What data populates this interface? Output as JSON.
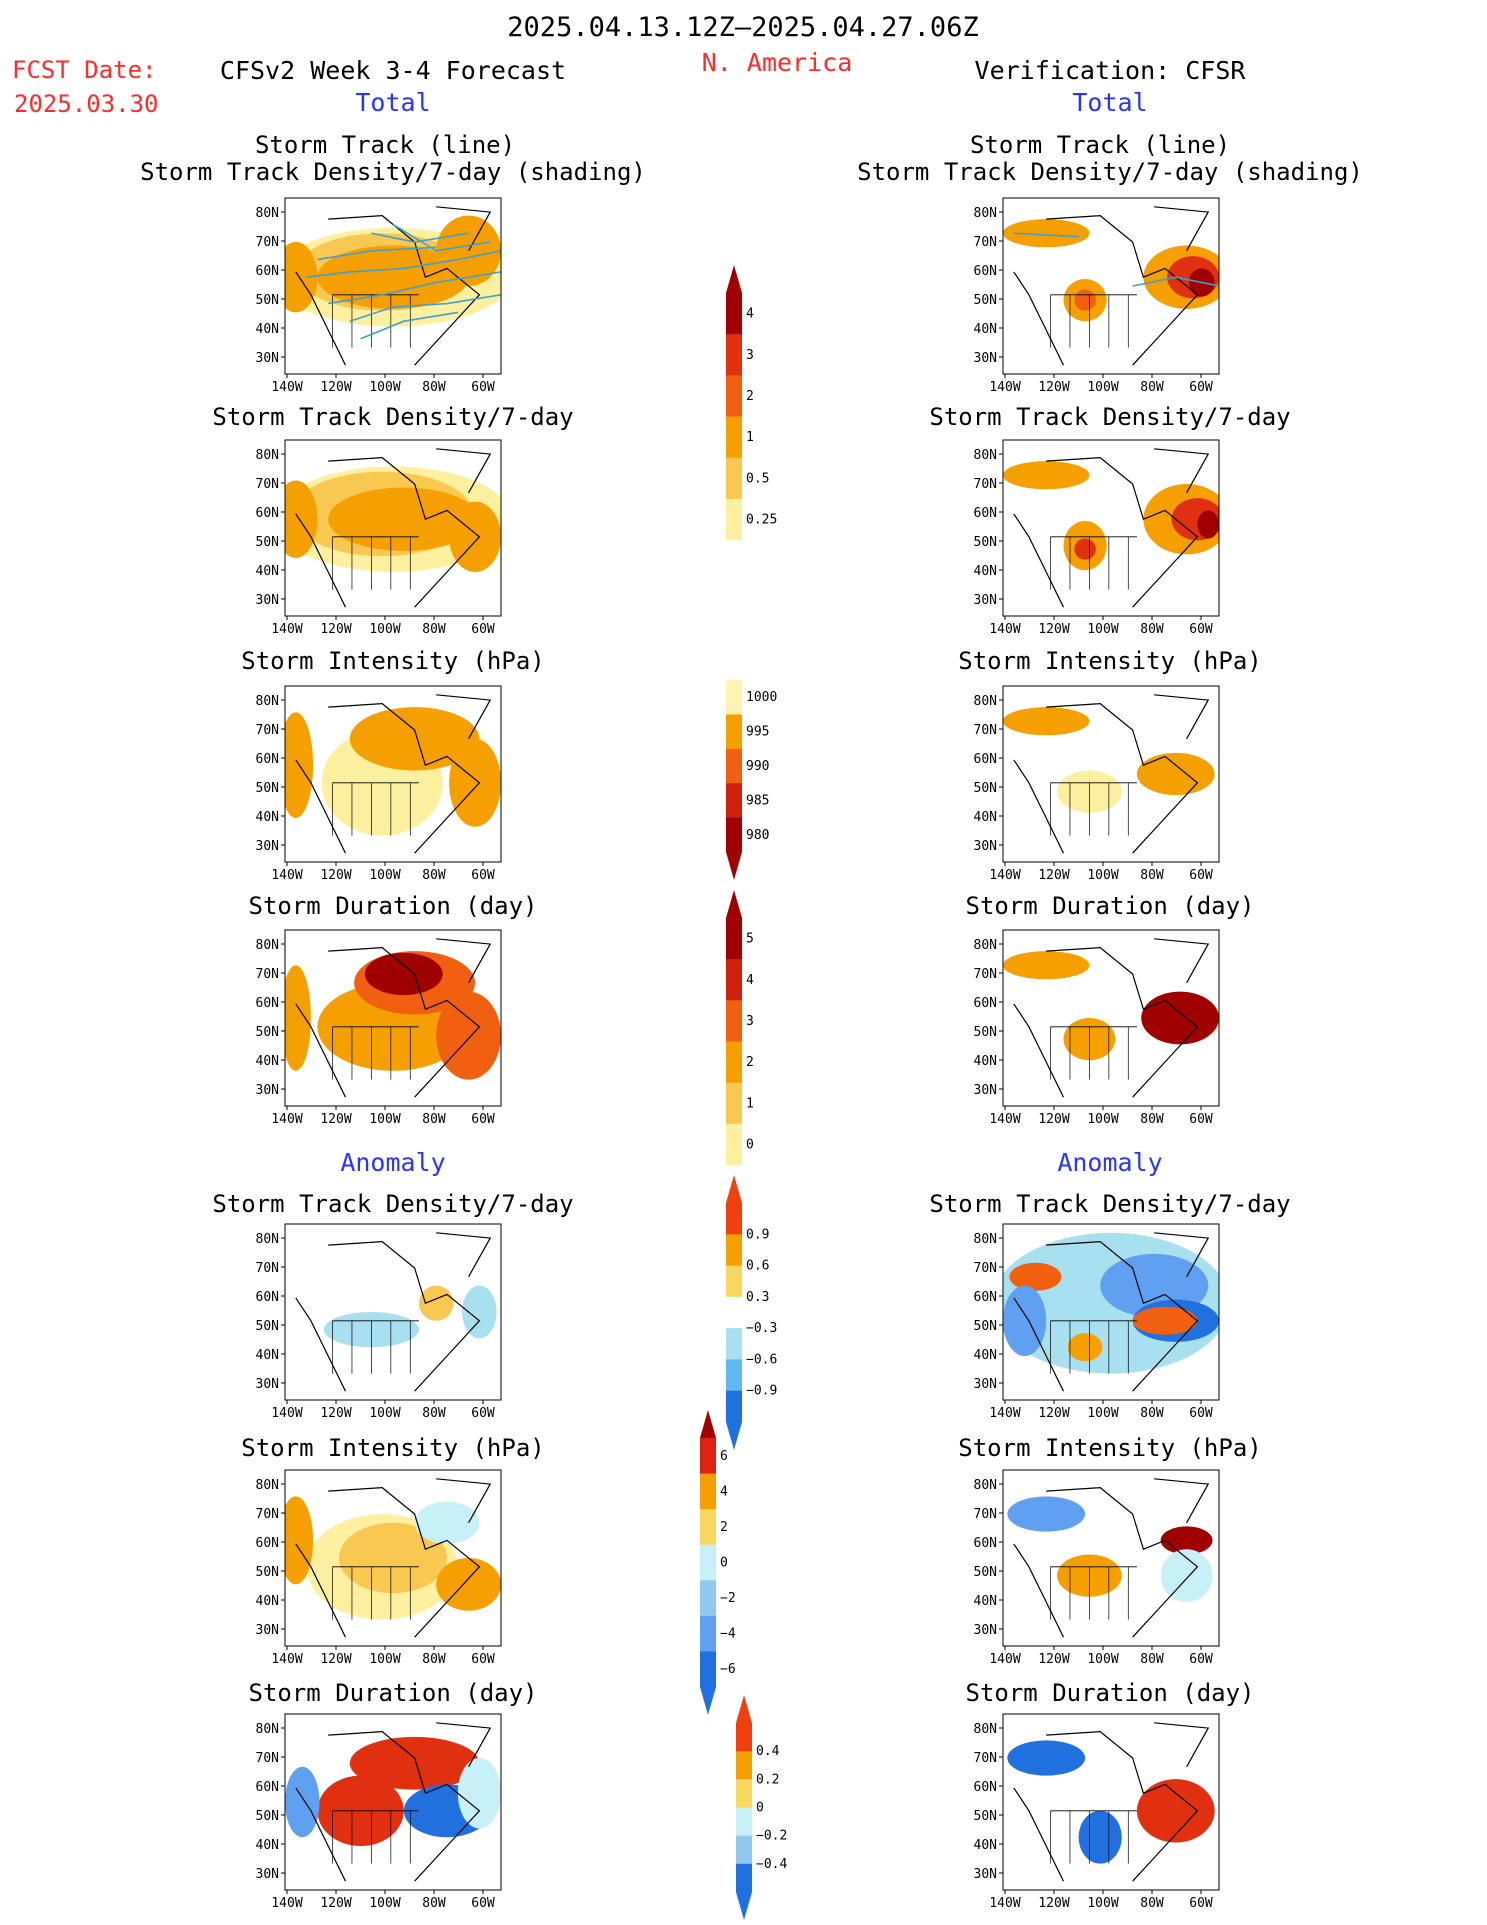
{
  "header": {
    "date_range": "2025.04.13.12Z–2025.04.27.06Z",
    "region": "N. America",
    "fcst_label": "FCST Date:",
    "fcst_date": "2025.03.30",
    "left_title": "CFSv2 Week 3-4 Forecast",
    "right_title": "Verification: CFSR"
  },
  "sections": {
    "total_label": "Total",
    "anomaly_label": "Anomaly"
  },
  "panel_titles": {
    "storm_track": [
      "Storm Track (line)",
      "Storm Track Density/7-day (shading)"
    ],
    "density": "Storm Track Density/7-day",
    "intensity": "Storm Intensity (hPa)",
    "duration": "Storm Duration (day)"
  },
  "axes": {
    "lat_labels": [
      "80N",
      "70N",
      "60N",
      "50N",
      "40N",
      "30N"
    ],
    "lon_labels": [
      "140W",
      "120W",
      "100W",
      "80W",
      "60W"
    ]
  },
  "colors": {
    "track_line": "#3da0d0",
    "map_line": "#000000"
  },
  "colorbars": [
    {
      "id": "density",
      "labels": [
        "4",
        "3",
        "2",
        "1",
        "0.5",
        "0.25"
      ],
      "colors": [
        "#a00000",
        "#e03010",
        "#f06010",
        "#f5a000",
        "#f8c850",
        "#fff0a0"
      ],
      "over": "#a00000"
    },
    {
      "id": "intensity",
      "labels": [
        "1000",
        "995",
        "990",
        "985",
        "980"
      ],
      "colors": [
        "#fff5b0",
        "#f5a000",
        "#f06010",
        "#d02010",
        "#a00000"
      ],
      "under": "#a00000"
    },
    {
      "id": "duration",
      "labels": [
        "5",
        "4",
        "3",
        "2",
        "1",
        "0"
      ],
      "colors": [
        "#a00000",
        "#d02010",
        "#f06010",
        "#f5a000",
        "#f8c850",
        "#fff0a0"
      ],
      "over": "#a00000"
    },
    {
      "id": "density-anom",
      "labels": [
        "0.9",
        "0.6",
        "0.3",
        "−0.3",
        "−0.6",
        "−0.9"
      ],
      "colors": [
        "#f04010",
        "#f5a000",
        "#f8d860",
        "#ffffff",
        "#a8e0f0",
        "#60b8f0",
        "#2070e0"
      ],
      "over": "#f04010",
      "under": "#2070e0"
    },
    {
      "id": "intensity-anom",
      "labels": [
        "6",
        "4",
        "2",
        "0",
        "−2",
        "−4",
        "−6"
      ],
      "colors": [
        "#e02010",
        "#f5a000",
        "#f8d860",
        "#c8f0f8",
        "#90c8f0",
        "#60a0f0",
        "#2070e0"
      ],
      "over": "#a00000",
      "under": "#2070e0"
    },
    {
      "id": "duration-anom",
      "labels": [
        "0.4",
        "0.2",
        "0",
        "−0.2",
        "−0.4"
      ],
      "colors": [
        "#f04010",
        "#f5a000",
        "#f8d860",
        "#c8f0f8",
        "#90c8f0",
        "#2070e0"
      ],
      "over": "#f04010",
      "under": "#2070e0"
    }
  ]
}
